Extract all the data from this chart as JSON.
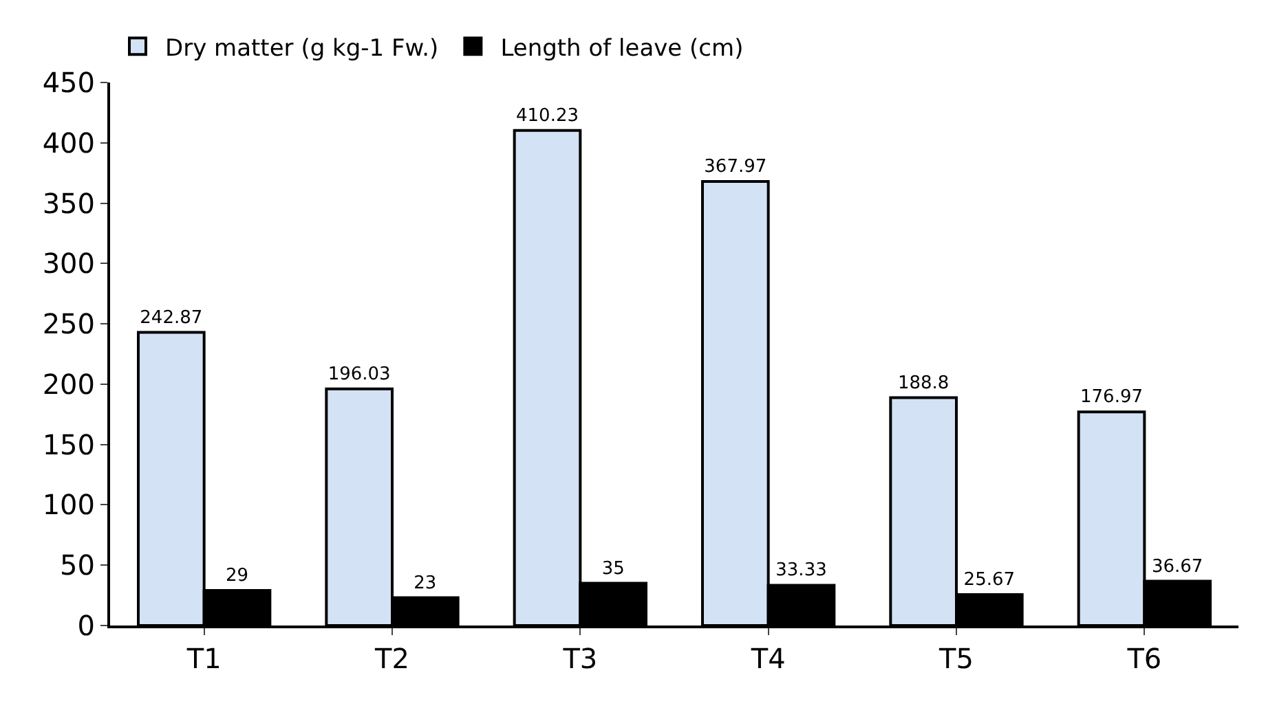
{
  "chart_data": {
    "type": "bar",
    "categories": [
      "T1",
      "T2",
      "T3",
      "T4",
      "T5",
      "T6"
    ],
    "series": [
      {
        "name": "Dry matter (g kg-1 Fw.)",
        "color": "#d3e2f4",
        "values": [
          242.87,
          196.03,
          410.23,
          367.97,
          188.8,
          176.97
        ]
      },
      {
        "name": "Length of leave (cm)",
        "color": "#000000",
        "values": [
          29,
          23,
          35,
          33.33,
          25.67,
          36.67
        ]
      }
    ],
    "ylim": [
      0,
      450
    ],
    "yticks": [
      0,
      50,
      100,
      150,
      200,
      250,
      300,
      350,
      400,
      450
    ],
    "data_labels": true,
    "legend": "top left"
  }
}
